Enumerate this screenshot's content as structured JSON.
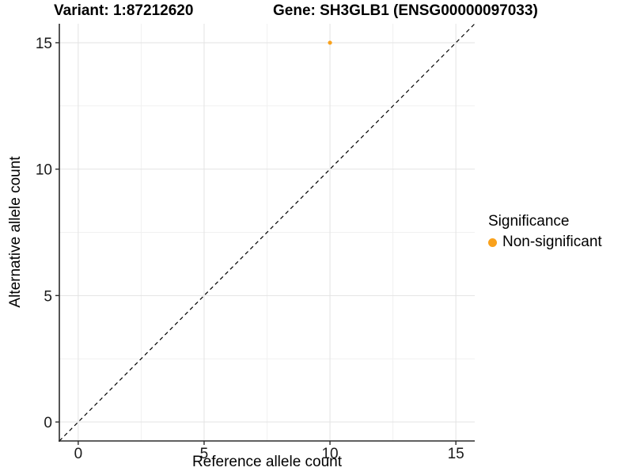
{
  "figure": {
    "title_left": "Variant: 1:87212620",
    "title_right": "Gene: SH3GLB1 (ENSG00000097033)"
  },
  "chart_data": {
    "type": "scatter",
    "title": "Variant: 1:87212620  Gene: SH3GLB1 (ENSG00000097033)",
    "xlabel": "Reference allele count",
    "ylabel": "Alternative allele count",
    "xlim": [
      -0.75,
      15.75
    ],
    "ylim": [
      -0.75,
      15.75
    ],
    "x_ticks": [
      0,
      5,
      10,
      15
    ],
    "y_ticks": [
      0,
      5,
      10,
      15
    ],
    "x_tick_labels": [
      "0",
      "5",
      "10",
      "15"
    ],
    "y_tick_labels": [
      "0",
      "5",
      "10",
      "15"
    ],
    "x_minor": [
      2.5,
      7.5,
      12.5
    ],
    "y_minor": [
      2.5,
      7.5,
      12.5
    ],
    "grid": "major+minor",
    "points": [
      {
        "x": 10,
        "y": 15,
        "series": "Non-significant"
      }
    ],
    "identity_line": {
      "slope": 1,
      "intercept": 0,
      "style": "dashed"
    },
    "legend": {
      "title": "Significance",
      "position": "right",
      "entries": [
        {
          "label": "Non-significant",
          "color": "#F9A11C"
        }
      ]
    },
    "colors": {
      "point": "#F9A11C",
      "grid_major": "#E3E3E3",
      "grid_minor": "#F1F1F1",
      "axis_line": "#2b2b2b",
      "tick_text": "#1a1a1a",
      "identity_line": "#000000"
    }
  }
}
